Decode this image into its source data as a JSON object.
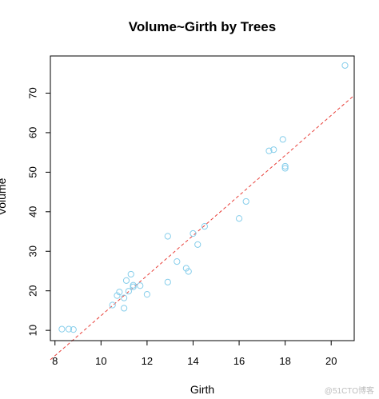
{
  "chart_data": {
    "type": "scatter",
    "title": "Volume~Girth by Trees",
    "xlabel": "Girth",
    "ylabel": "Volume",
    "xlim": [
      7.8,
      21.0
    ],
    "ylim": [
      7.4,
      79.4
    ],
    "x_ticks": [
      8,
      10,
      12,
      14,
      16,
      18,
      20
    ],
    "y_ticks": [
      10,
      20,
      30,
      40,
      50,
      60,
      70
    ],
    "grid": false,
    "legend": "none",
    "colors": {
      "points": "#87ceeb",
      "line": "#e8403a",
      "axes": "#000000"
    },
    "series": [
      {
        "marker": "open-circle",
        "x": [
          8.3,
          8.6,
          8.8,
          10.5,
          10.7,
          10.8,
          11.0,
          11.0,
          11.1,
          11.2,
          11.3,
          11.4,
          11.4,
          11.7,
          12.0,
          12.9,
          12.9,
          13.3,
          13.7,
          13.8,
          14.0,
          14.2,
          14.5,
          16.0,
          16.3,
          17.3,
          17.5,
          17.9,
          18.0,
          18.0,
          20.6
        ],
        "y": [
          10.3,
          10.3,
          10.2,
          16.4,
          18.8,
          19.7,
          15.6,
          18.2,
          22.6,
          19.9,
          24.2,
          21.0,
          21.4,
          21.3,
          19.1,
          22.2,
          33.8,
          27.4,
          25.7,
          24.9,
          34.5,
          31.7,
          36.3,
          38.3,
          42.6,
          55.4,
          55.7,
          58.3,
          51.5,
          51.0,
          77.0
        ]
      }
    ],
    "fit_line": {
      "style": "dashed",
      "intercept": -36.94,
      "slope": 5.066
    }
  },
  "watermark": "@51CTO博客"
}
